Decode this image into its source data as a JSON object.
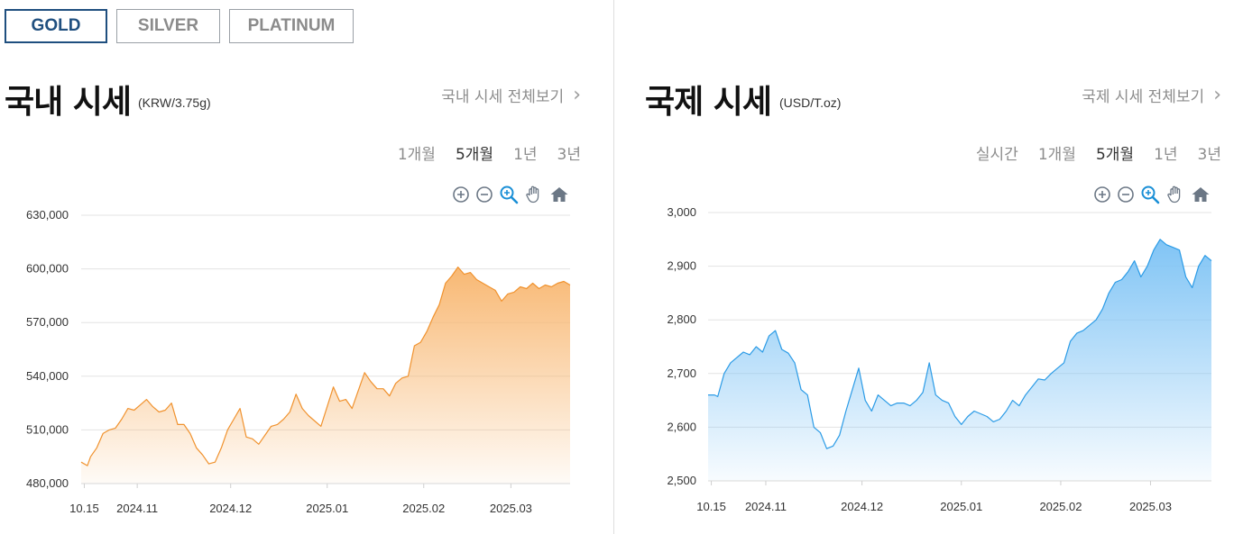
{
  "tabs": [
    {
      "label": "GOLD",
      "active": true
    },
    {
      "label": "SILVER",
      "active": false
    },
    {
      "label": "PLATINUM",
      "active": false
    }
  ],
  "domestic": {
    "title": "국내 시세",
    "unit": "(KRW/3.75g)",
    "more_link": "국내 시세 전체보기",
    "periods": [
      "1개월",
      "5개월",
      "1년",
      "3년"
    ],
    "selected_period": "5개월",
    "tools": [
      "zoom-in-icon",
      "zoom-out-icon",
      "zoom-select-icon",
      "pan-hand-icon",
      "home-icon"
    ]
  },
  "international": {
    "title": "국제 시세",
    "unit": "(USD/T.oz)",
    "more_link": "국제 시세 전체보기",
    "periods": [
      "실시간",
      "1개월",
      "5개월",
      "1년",
      "3년"
    ],
    "selected_period": "5개월",
    "tools": [
      "zoom-in-icon",
      "zoom-out-icon",
      "zoom-select-icon",
      "pan-hand-icon",
      "home-icon"
    ]
  },
  "chart_data": [
    {
      "type": "area",
      "title": "국내 시세",
      "unit": "KRW/3.75g",
      "color": "#f0922e",
      "fill_top": "#f8b873",
      "ylim": [
        480000,
        630000
      ],
      "y_ticks": [
        630000,
        600000,
        570000,
        540000,
        510000,
        480000
      ],
      "y_tick_labels": [
        "630,000",
        "600,000",
        "570,000",
        "540,000",
        "510,000",
        "480,000"
      ],
      "x_ticks": [
        {
          "label": "10.15",
          "date": "2024-10-15"
        },
        {
          "label": "2024.11",
          "date": "2024-11-01"
        },
        {
          "label": "2024.12",
          "date": "2024-12-01"
        },
        {
          "label": "2025.01",
          "date": "2025-01-01"
        },
        {
          "label": "2025.02",
          "date": "2025-02-01"
        },
        {
          "label": "2025.03",
          "date": "2025-03-01"
        }
      ],
      "grid": true,
      "x": [
        "2024-10-14",
        "2024-10-16",
        "2024-10-17",
        "2024-10-19",
        "2024-10-21",
        "2024-10-23",
        "2024-10-25",
        "2024-10-27",
        "2024-10-29",
        "2024-10-31",
        "2024-11-02",
        "2024-11-04",
        "2024-11-06",
        "2024-11-08",
        "2024-11-10",
        "2024-11-12",
        "2024-11-14",
        "2024-11-16",
        "2024-11-18",
        "2024-11-20",
        "2024-11-22",
        "2024-11-24",
        "2024-11-26",
        "2024-11-28",
        "2024-11-30",
        "2024-12-02",
        "2024-12-04",
        "2024-12-06",
        "2024-12-08",
        "2024-12-10",
        "2024-12-12",
        "2024-12-14",
        "2024-12-16",
        "2024-12-18",
        "2024-12-20",
        "2024-12-22",
        "2024-12-24",
        "2024-12-26",
        "2024-12-28",
        "2024-12-30",
        "2025-01-01",
        "2025-01-03",
        "2025-01-05",
        "2025-01-07",
        "2025-01-09",
        "2025-01-11",
        "2025-01-13",
        "2025-01-15",
        "2025-01-17",
        "2025-01-19",
        "2025-01-21",
        "2025-01-23",
        "2025-01-25",
        "2025-01-27",
        "2025-01-29",
        "2025-01-31",
        "2025-02-02",
        "2025-02-04",
        "2025-02-06",
        "2025-02-08",
        "2025-02-10",
        "2025-02-12",
        "2025-02-14",
        "2025-02-16",
        "2025-02-18",
        "2025-02-20",
        "2025-02-22",
        "2025-02-24",
        "2025-02-26",
        "2025-02-28",
        "2025-03-02",
        "2025-03-04",
        "2025-03-06",
        "2025-03-08",
        "2025-03-10",
        "2025-03-12",
        "2025-03-14",
        "2025-03-16",
        "2025-03-18",
        "2025-03-20"
      ],
      "values": [
        492000,
        490000,
        495000,
        500000,
        508000,
        510000,
        511000,
        516000,
        522000,
        521000,
        524000,
        527000,
        523000,
        520000,
        521000,
        525000,
        513000,
        513000,
        508000,
        500000,
        496000,
        491000,
        492000,
        500000,
        510000,
        516000,
        522000,
        506000,
        505000,
        502000,
        507000,
        512000,
        513000,
        516000,
        520000,
        530000,
        522000,
        518000,
        515000,
        512000,
        523000,
        534000,
        526000,
        527000,
        522000,
        532000,
        542000,
        537000,
        533000,
        533000,
        529000,
        536000,
        539000,
        540000,
        557000,
        559000,
        565000,
        573000,
        580000,
        592000,
        596000,
        601000,
        597000,
        598000,
        594000,
        592000,
        590000,
        588000,
        582000,
        586000,
        587000,
        590000,
        589000,
        592000,
        589000,
        591000,
        590000,
        592000,
        593000,
        591000
      ]
    },
    {
      "type": "area",
      "title": "국제 시세",
      "unit": "USD/T.oz",
      "color": "#2b9be6",
      "fill_top": "#80c4f5",
      "ylim": [
        2500,
        3000
      ],
      "y_ticks": [
        3000,
        2900,
        2800,
        2700,
        2600,
        2500
      ],
      "y_tick_labels": [
        "3,000",
        "2,900",
        "2,800",
        "2,700",
        "2,600",
        "2,500"
      ],
      "x_ticks": [
        {
          "label": "10.15",
          "date": "2024-10-15"
        },
        {
          "label": "2024.11",
          "date": "2024-11-01"
        },
        {
          "label": "2024.12",
          "date": "2024-12-01"
        },
        {
          "label": "2025.01",
          "date": "2025-01-01"
        },
        {
          "label": "2025.02",
          "date": "2025-02-01"
        },
        {
          "label": "2025.03",
          "date": "2025-03-01"
        }
      ],
      "grid": true,
      "x": [
        "2024-10-14",
        "2024-10-16",
        "2024-10-17",
        "2024-10-19",
        "2024-10-21",
        "2024-10-23",
        "2024-10-25",
        "2024-10-27",
        "2024-10-29",
        "2024-10-31",
        "2024-11-02",
        "2024-11-04",
        "2024-11-06",
        "2024-11-08",
        "2024-11-10",
        "2024-11-12",
        "2024-11-14",
        "2024-11-16",
        "2024-11-18",
        "2024-11-20",
        "2024-11-22",
        "2024-11-24",
        "2024-11-26",
        "2024-11-28",
        "2024-11-30",
        "2024-12-02",
        "2024-12-04",
        "2024-12-06",
        "2024-12-08",
        "2024-12-10",
        "2024-12-12",
        "2024-12-14",
        "2024-12-16",
        "2024-12-18",
        "2024-12-20",
        "2024-12-22",
        "2024-12-24",
        "2024-12-26",
        "2024-12-28",
        "2024-12-30",
        "2025-01-01",
        "2025-01-03",
        "2025-01-05",
        "2025-01-07",
        "2025-01-09",
        "2025-01-11",
        "2025-01-13",
        "2025-01-15",
        "2025-01-17",
        "2025-01-19",
        "2025-01-21",
        "2025-01-23",
        "2025-01-25",
        "2025-01-27",
        "2025-01-29",
        "2025-01-31",
        "2025-02-02",
        "2025-02-04",
        "2025-02-06",
        "2025-02-08",
        "2025-02-10",
        "2025-02-12",
        "2025-02-14",
        "2025-02-16",
        "2025-02-18",
        "2025-02-20",
        "2025-02-22",
        "2025-02-24",
        "2025-02-26",
        "2025-02-28",
        "2025-03-02",
        "2025-03-04",
        "2025-03-06",
        "2025-03-08",
        "2025-03-10",
        "2025-03-12",
        "2025-03-14",
        "2025-03-16",
        "2025-03-18",
        "2025-03-20"
      ],
      "values": [
        2660,
        2660,
        2657,
        2700,
        2720,
        2730,
        2740,
        2735,
        2750,
        2740,
        2770,
        2780,
        2745,
        2738,
        2720,
        2670,
        2660,
        2600,
        2590,
        2560,
        2565,
        2585,
        2630,
        2670,
        2710,
        2650,
        2630,
        2660,
        2650,
        2640,
        2645,
        2645,
        2640,
        2650,
        2665,
        2720,
        2660,
        2650,
        2645,
        2620,
        2605,
        2620,
        2630,
        2625,
        2620,
        2610,
        2615,
        2630,
        2650,
        2640,
        2660,
        2675,
        2690,
        2688,
        2700,
        2710,
        2720,
        2760,
        2775,
        2780,
        2790,
        2800,
        2820,
        2850,
        2870,
        2875,
        2890,
        2910,
        2880,
        2900,
        2930,
        2950,
        2940,
        2935,
        2930,
        2880,
        2860,
        2900,
        2920,
        2910
      ]
    }
  ]
}
